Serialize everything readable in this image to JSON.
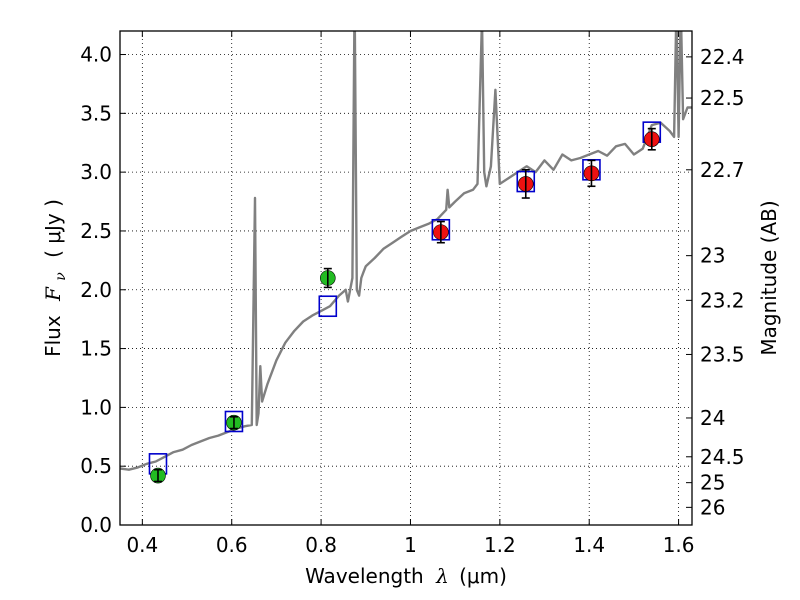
{
  "chart_data": {
    "type": "scatter",
    "xlabel_prefix": "Wavelength",
    "xlabel_symbol": "λ",
    "xlabel_unit": "(μm)",
    "ylabel_prefix": "Flux",
    "ylabel_symbol": "F",
    "ylabel_subscript": "ν",
    "ylabel_unit": "( μJy )",
    "y2label": "Magnitude (AB)",
    "xlim": [
      0.35,
      1.63
    ],
    "ylim": [
      0.0,
      4.2
    ],
    "grid": true,
    "x_ticks": [
      0.4,
      0.6,
      0.8,
      1.0,
      1.2,
      1.4,
      1.6
    ],
    "x_tick_labels": [
      "0.4",
      "0.6",
      "0.8",
      "1",
      "1.2",
      "1.4",
      "1.6"
    ],
    "y_ticks": [
      0.0,
      0.5,
      1.0,
      1.5,
      2.0,
      2.5,
      3.0,
      3.5,
      4.0
    ],
    "y_tick_labels": [
      "0.0",
      "0.5",
      "1.0",
      "1.5",
      "2.0",
      "2.5",
      "3.0",
      "3.5",
      "4.0"
    ],
    "y2_ticks": [
      {
        "label": "22.4",
        "flux": 3.98
      },
      {
        "label": "22.5",
        "flux": 3.63
      },
      {
        "label": "22.7",
        "flux": 3.02
      },
      {
        "label": "23",
        "flux": 2.29
      },
      {
        "label": "23.2",
        "flux": 1.91
      },
      {
        "label": "23.5",
        "flux": 1.45
      },
      {
        "label": "24",
        "flux": 0.91
      },
      {
        "label": "24.5",
        "flux": 0.58
      },
      {
        "label": "25",
        "flux": 0.36
      },
      {
        "label": "26",
        "flux": 0.15
      }
    ],
    "series": [
      {
        "name": "model spectrum",
        "kind": "line",
        "color": "#808080",
        "x": [
          0.35,
          0.37,
          0.39,
          0.41,
          0.43,
          0.45,
          0.47,
          0.49,
          0.51,
          0.53,
          0.55,
          0.57,
          0.59,
          0.61,
          0.63,
          0.645,
          0.652,
          0.656,
          0.66,
          0.664,
          0.668,
          0.68,
          0.7,
          0.72,
          0.74,
          0.76,
          0.78,
          0.8,
          0.82,
          0.84,
          0.855,
          0.86,
          0.87,
          0.875,
          0.88,
          0.885,
          0.89,
          0.895,
          0.9,
          0.92,
          0.94,
          0.96,
          0.98,
          1.0,
          1.02,
          1.04,
          1.06,
          1.08,
          1.083,
          1.087,
          1.1,
          1.12,
          1.14,
          1.15,
          1.16,
          1.165,
          1.17,
          1.18,
          1.19,
          1.2,
          1.22,
          1.24,
          1.26,
          1.28,
          1.3,
          1.32,
          1.34,
          1.36,
          1.38,
          1.4,
          1.42,
          1.44,
          1.46,
          1.48,
          1.5,
          1.52,
          1.54,
          1.56,
          1.58,
          1.59,
          1.595,
          1.6,
          1.605,
          1.61,
          1.62,
          1.63
        ],
        "y": [
          0.48,
          0.47,
          0.49,
          0.52,
          0.54,
          0.58,
          0.62,
          0.64,
          0.68,
          0.71,
          0.74,
          0.76,
          0.79,
          0.82,
          0.84,
          0.85,
          2.78,
          0.85,
          0.95,
          1.35,
          1.05,
          1.2,
          1.4,
          1.55,
          1.65,
          1.73,
          1.78,
          1.82,
          1.86,
          1.95,
          2.0,
          1.9,
          2.1,
          4.5,
          2.0,
          1.95,
          2.1,
          2.15,
          2.2,
          2.27,
          2.35,
          2.4,
          2.45,
          2.5,
          2.53,
          2.56,
          2.6,
          2.68,
          2.85,
          2.7,
          2.75,
          2.82,
          2.85,
          2.9,
          4.3,
          3.0,
          2.88,
          3.05,
          3.7,
          2.9,
          2.95,
          3.0,
          3.05,
          3.0,
          3.1,
          3.02,
          3.15,
          3.1,
          3.12,
          3.15,
          3.18,
          3.14,
          3.22,
          3.24,
          3.15,
          3.2,
          3.4,
          3.42,
          3.35,
          3.3,
          4.4,
          3.3,
          4.4,
          3.45,
          3.55,
          3.55
        ]
      },
      {
        "name": "model photometry",
        "kind": "open-square",
        "color": "#0000cc",
        "x": [
          0.435,
          0.605,
          0.815,
          1.068,
          1.258,
          1.405,
          1.54
        ],
        "y": [
          0.52,
          0.88,
          1.86,
          2.51,
          2.92,
          3.02,
          3.34
        ]
      },
      {
        "name": "optical photometry",
        "kind": "filled-circle",
        "color": "#22bb22",
        "x": [
          0.435,
          0.605,
          0.815
        ],
        "y": [
          0.42,
          0.87,
          2.1
        ],
        "yerr": [
          0.05,
          0.05,
          0.08
        ]
      },
      {
        "name": "near-IR photometry",
        "kind": "filled-circle",
        "color": "#ee1111",
        "x": [
          1.068,
          1.258,
          1.405,
          1.54
        ],
        "y": [
          2.49,
          2.9,
          2.99,
          3.28
        ],
        "yerr": [
          0.09,
          0.12,
          0.11,
          0.09
        ]
      }
    ]
  }
}
